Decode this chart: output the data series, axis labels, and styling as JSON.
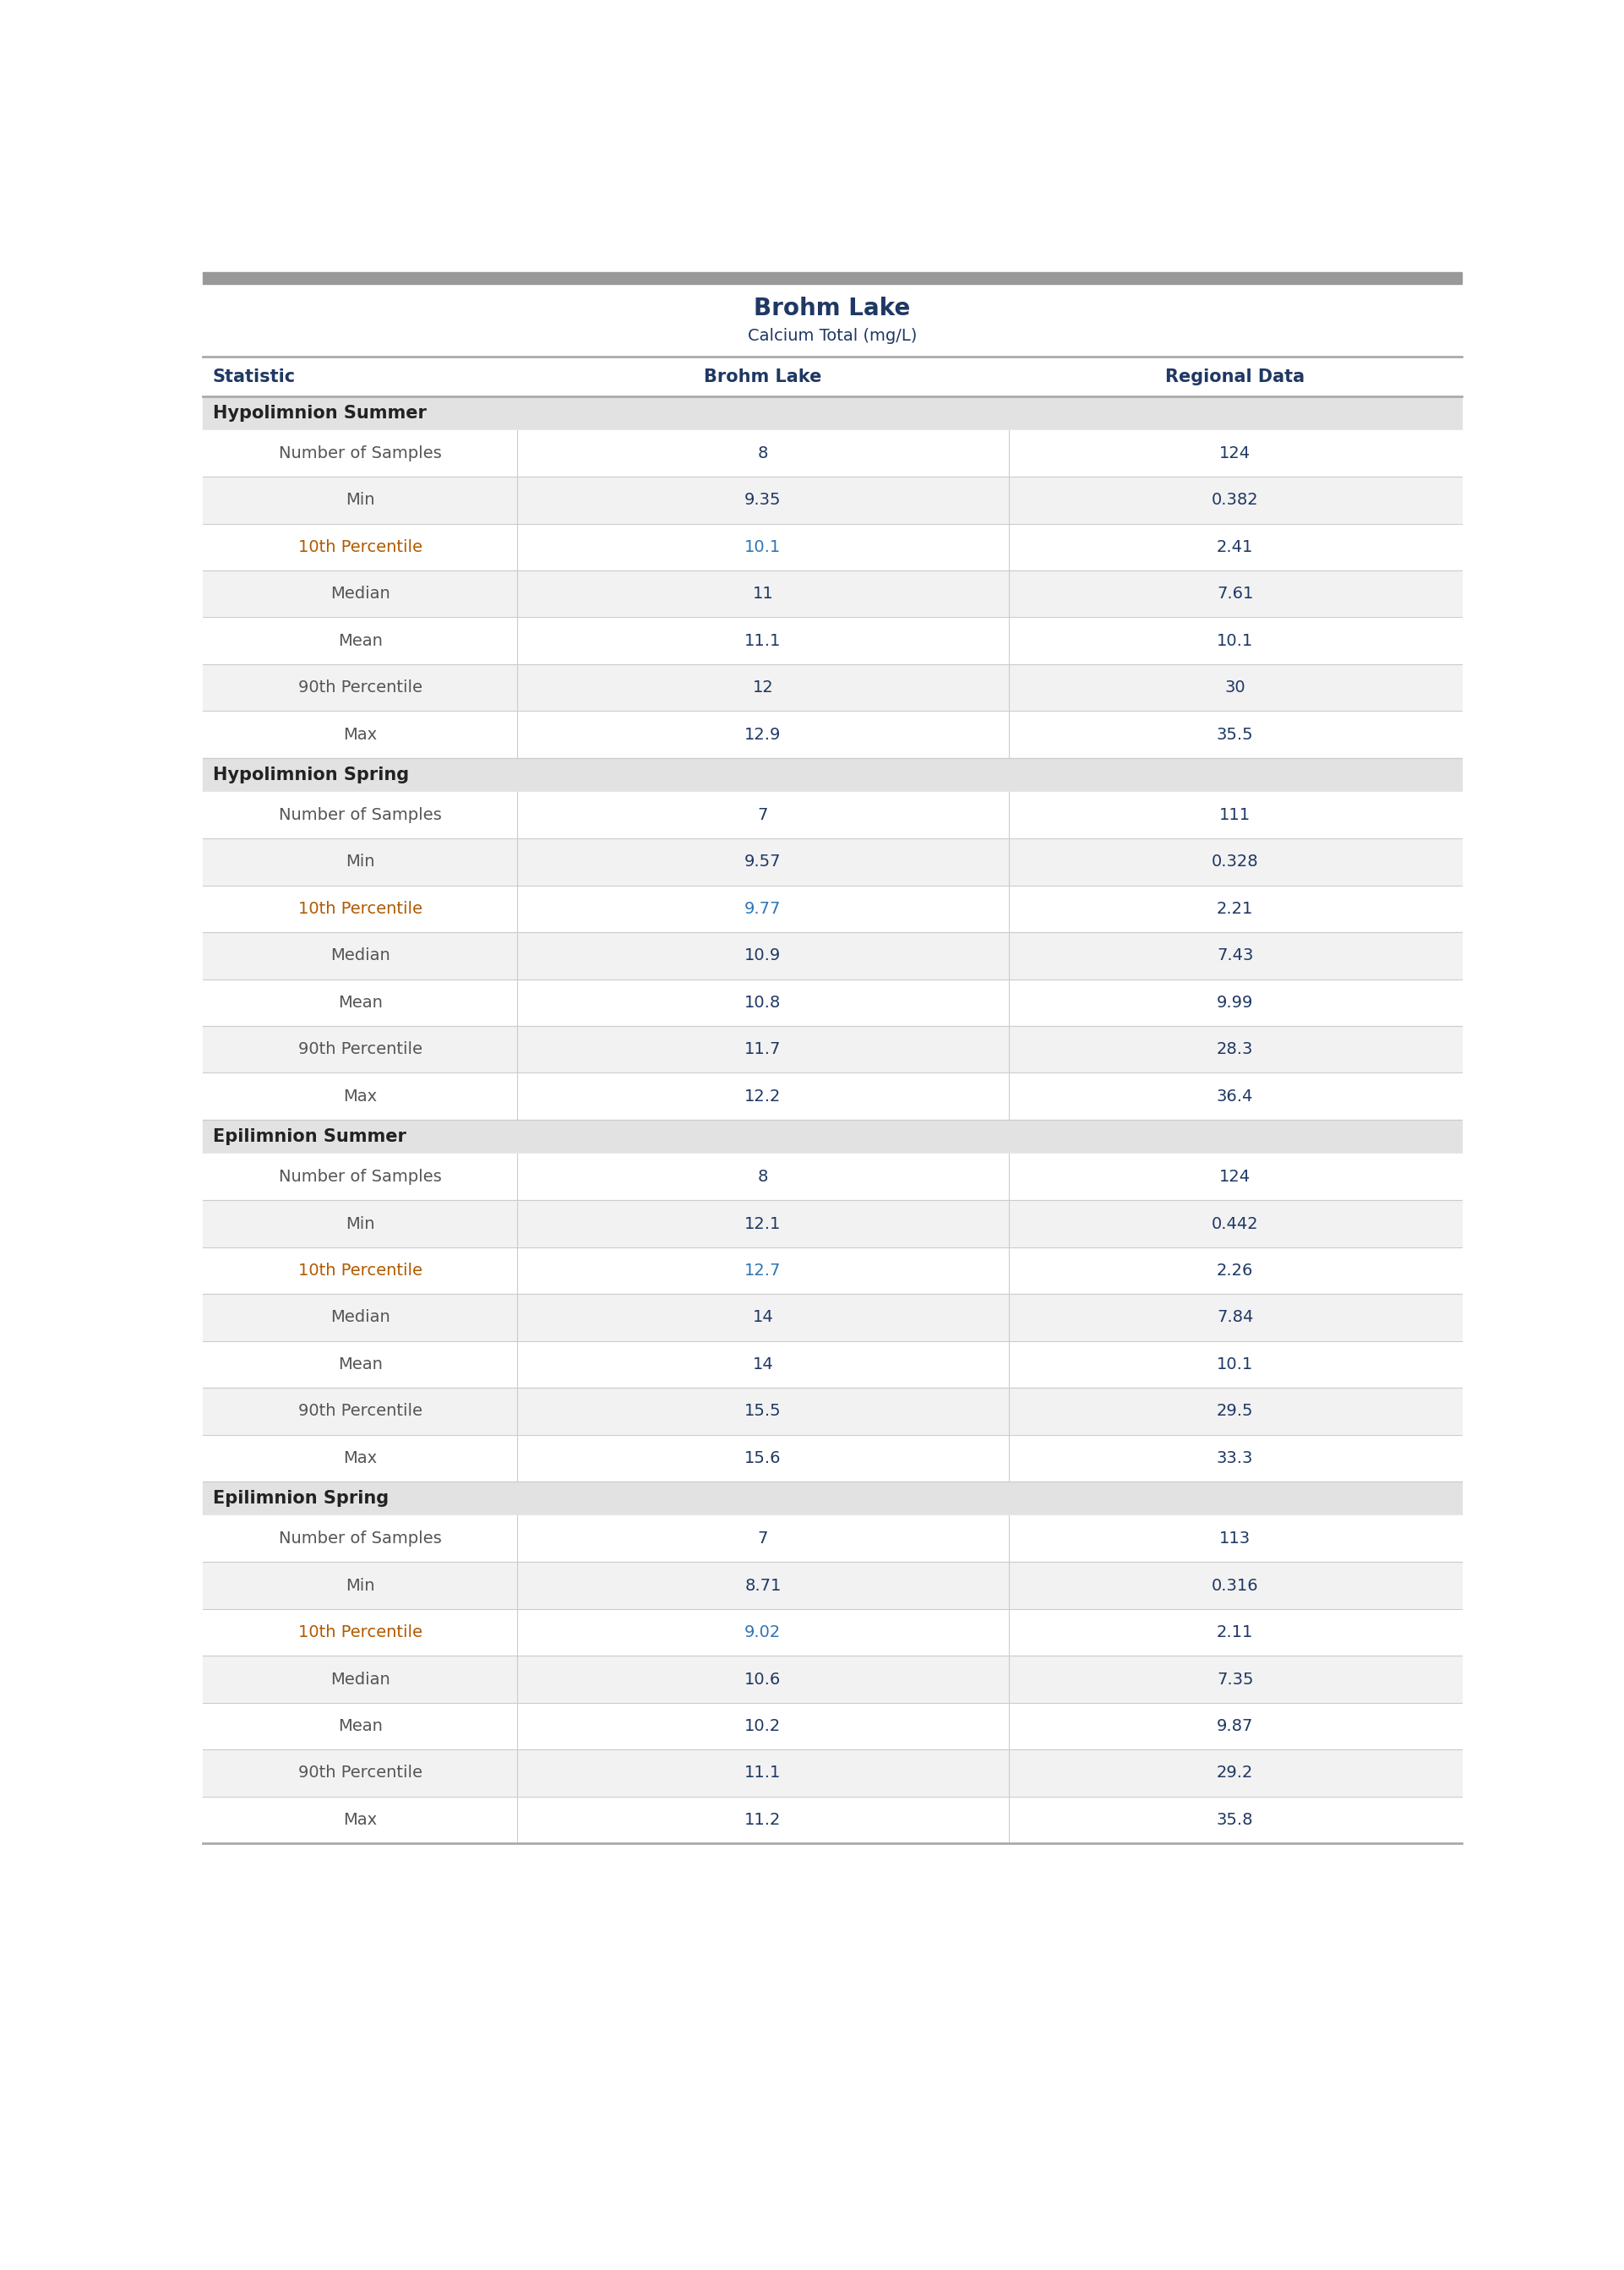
{
  "title": "Brohm Lake",
  "subtitle": "Calcium Total (mg/L)",
  "col_headers": [
    "Statistic",
    "Brohm Lake",
    "Regional Data"
  ],
  "sections": [
    {
      "header": "Hypolimnion Summer",
      "rows": [
        [
          "Number of Samples",
          "8",
          "124",
          false
        ],
        [
          "Min",
          "9.35",
          "0.382",
          false
        ],
        [
          "10th Percentile",
          "10.1",
          "2.41",
          true
        ],
        [
          "Median",
          "11",
          "7.61",
          false
        ],
        [
          "Mean",
          "11.1",
          "10.1",
          false
        ],
        [
          "90th Percentile",
          "12",
          "30",
          false
        ],
        [
          "Max",
          "12.9",
          "35.5",
          false
        ]
      ]
    },
    {
      "header": "Hypolimnion Spring",
      "rows": [
        [
          "Number of Samples",
          "7",
          "111",
          false
        ],
        [
          "Min",
          "9.57",
          "0.328",
          false
        ],
        [
          "10th Percentile",
          "9.77",
          "2.21",
          true
        ],
        [
          "Median",
          "10.9",
          "7.43",
          false
        ],
        [
          "Mean",
          "10.8",
          "9.99",
          false
        ],
        [
          "90th Percentile",
          "11.7",
          "28.3",
          false
        ],
        [
          "Max",
          "12.2",
          "36.4",
          false
        ]
      ]
    },
    {
      "header": "Epilimnion Summer",
      "rows": [
        [
          "Number of Samples",
          "8",
          "124",
          false
        ],
        [
          "Min",
          "12.1",
          "0.442",
          false
        ],
        [
          "10th Percentile",
          "12.7",
          "2.26",
          true
        ],
        [
          "Median",
          "14",
          "7.84",
          false
        ],
        [
          "Mean",
          "14",
          "10.1",
          false
        ],
        [
          "90th Percentile",
          "15.5",
          "29.5",
          false
        ],
        [
          "Max",
          "15.6",
          "33.3",
          false
        ]
      ]
    },
    {
      "header": "Epilimnion Spring",
      "rows": [
        [
          "Number of Samples",
          "7",
          "113",
          false
        ],
        [
          "Min",
          "8.71",
          "0.316",
          false
        ],
        [
          "10th Percentile",
          "9.02",
          "2.11",
          true
        ],
        [
          "Median",
          "10.6",
          "7.35",
          false
        ],
        [
          "Mean",
          "10.2",
          "9.87",
          false
        ],
        [
          "90th Percentile",
          "11.1",
          "29.2",
          false
        ],
        [
          "Max",
          "11.2",
          "35.8",
          false
        ]
      ]
    }
  ],
  "bg_color": "#ffffff",
  "section_bg": "#e2e2e2",
  "row_bg_alt": "#f2f2f2",
  "row_bg_norm": "#ffffff",
  "line_color": "#cccccc",
  "top_bar_color": "#999999",
  "col_header_line_color": "#aaaaaa",
  "title_color": "#1f3864",
  "subtitle_color": "#1f3864",
  "col_header_color": "#1f3864",
  "section_header_color": "#222222",
  "stat_color_normal": "#555555",
  "stat_color_highlight": "#b05a00",
  "val1_color_normal": "#1f3864",
  "val1_color_highlight": "#2e75b6",
  "val2_color": "#1f3864",
  "title_fontsize": 20,
  "subtitle_fontsize": 14,
  "col_header_fontsize": 15,
  "section_header_fontsize": 15,
  "data_fontsize": 14
}
